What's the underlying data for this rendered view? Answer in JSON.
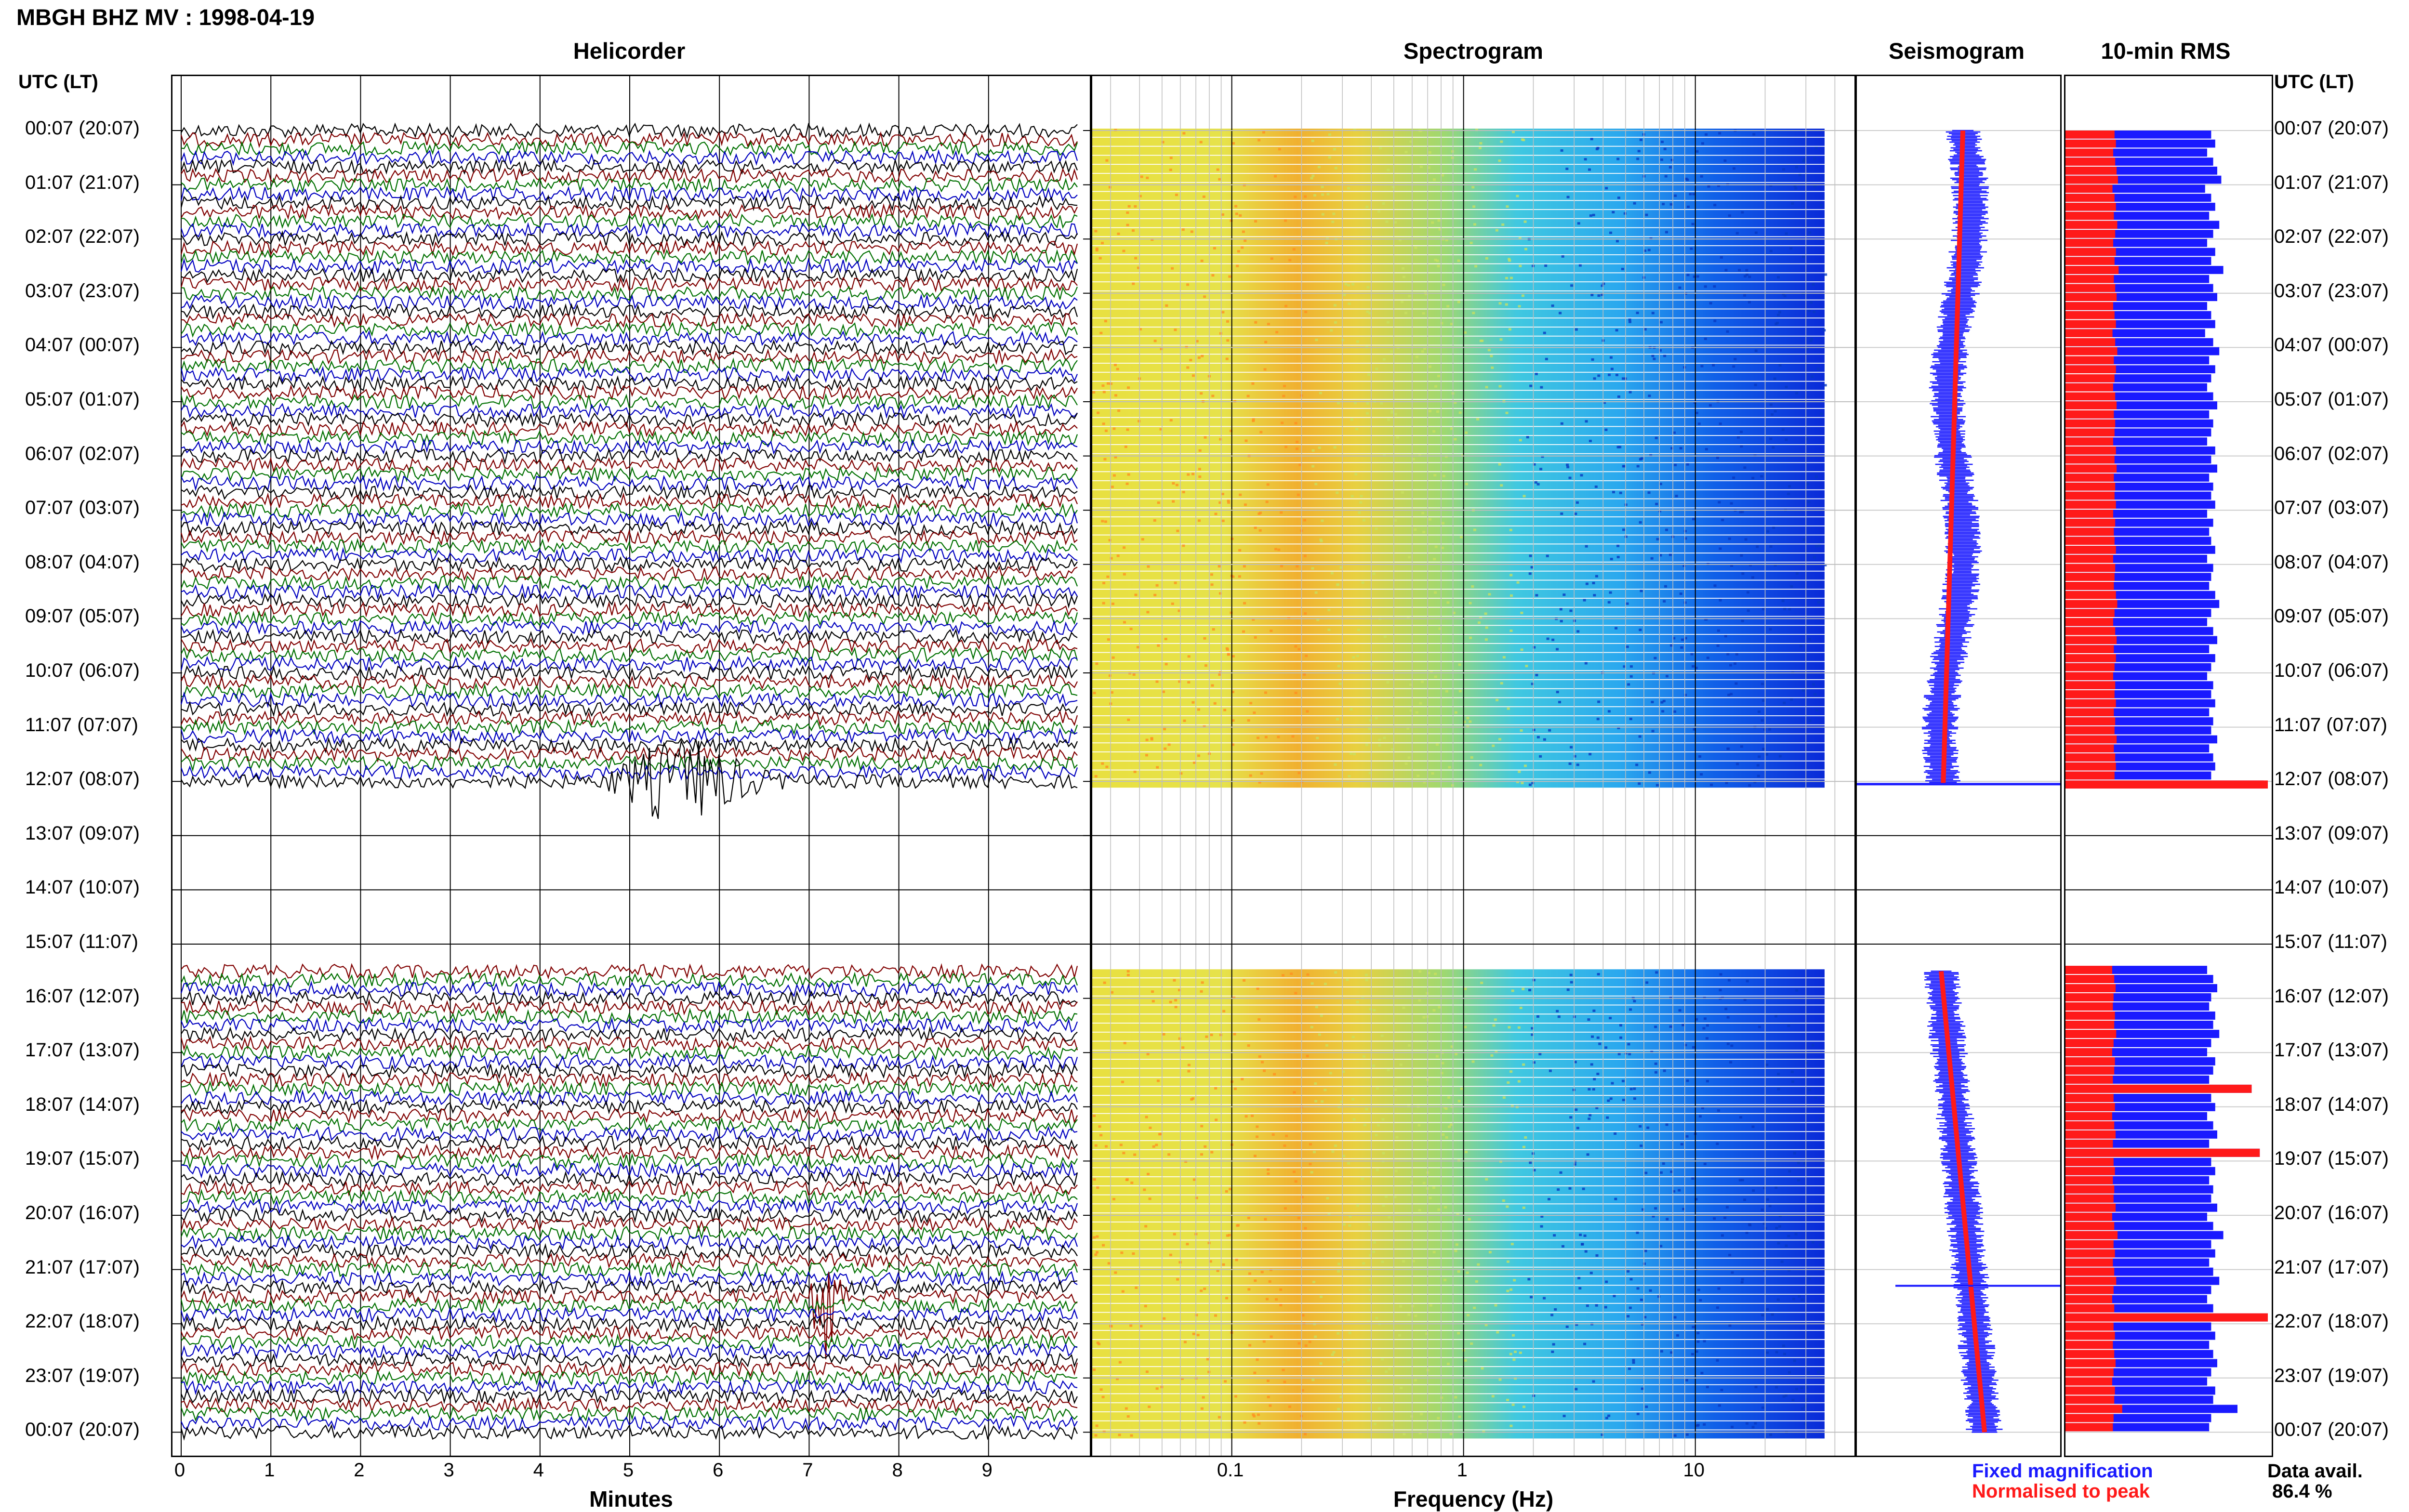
{
  "header": {
    "title": "MBGH BHZ MV : 1998-04-19"
  },
  "panels": {
    "helicorder": "Helicorder",
    "spectrogram": "Spectrogram",
    "seismogram": "Seismogram",
    "rms": "10-min RMS"
  },
  "axes": {
    "left_label": "UTC (LT)",
    "right_label": "UTC (LT)",
    "helicorder_xlabel": "Minutes",
    "spectrogram_xlabel": "Frequency (Hz)"
  },
  "legend": {
    "fixed": "Fixed magnification",
    "normalised": "Normalised to peak",
    "fixed_color": "#1a1aff",
    "normalised_color": "#ff1a1a"
  },
  "data_avail": {
    "label": "Data avail.",
    "value": "86.4 %"
  },
  "chart_data": [
    {
      "type": "line",
      "title": "Helicorder",
      "xlabel": "Minutes",
      "x_ticks": [
        "0",
        "1",
        "2",
        "3",
        "4",
        "5",
        "6",
        "7",
        "8",
        "9"
      ],
      "xlim": [
        0,
        10
      ],
      "y_tick_labels": [
        "00:07 (20:07)",
        "01:07 (21:07)",
        "02:07 (22:07)",
        "03:07 (23:07)",
        "04:07 (00:07)",
        "05:07 (01:07)",
        "06:07 (02:07)",
        "07:07 (03:07)",
        "08:07 (04:07)",
        "09:07 (05:07)",
        "10:07 (06:07)",
        "11:07 (07:07)",
        "12:07 (08:07)",
        "13:07 (09:07)",
        "14:07 (10:07)",
        "15:07 (11:07)",
        "16:07 (12:07)",
        "17:07 (13:07)",
        "18:07 (14:07)",
        "19:07 (15:07)",
        "20:07 (16:07)",
        "21:07 (17:07)",
        "22:07 (18:07)",
        "23:07 (19:07)",
        "00:07 (20:07)"
      ],
      "trace_colors": [
        "#000000",
        "#800000",
        "#007000",
        "#0000c0"
      ],
      "data_gap_hours": [
        12.1,
        15.4
      ]
    },
    {
      "type": "heatmap",
      "title": "Spectrogram",
      "xlabel": "Frequency (Hz)",
      "x_scale": "log",
      "x_ticks": [
        "0.1",
        "1",
        "10"
      ],
      "xlim": [
        0.025,
        50
      ]
    },
    {
      "type": "bar",
      "title": "10-min RMS",
      "series": [
        {
          "name": "Fixed magnification",
          "color": "#1a1aff",
          "values_first_block": [
            0.72,
            0.74,
            0.7,
            0.73,
            0.75,
            0.77,
            0.69,
            0.72,
            0.74,
            0.71,
            0.76,
            0.73,
            0.7,
            0.74,
            0.72,
            0.78,
            0.71,
            0.73,
            0.75,
            0.7,
            0.72,
            0.74,
            0.69,
            0.73,
            0.76,
            0.71,
            0.74,
            0.72,
            0.7,
            0.73,
            0.75,
            0.71,
            0.73,
            0.72,
            0.7,
            0.74,
            0.72,
            0.75,
            0.71,
            0.73,
            0.72,
            0.74,
            0.7,
            0.73,
            0.71,
            0.72,
            0.74,
            0.7,
            0.73,
            0.72,
            0.71,
            0.74,
            0.76,
            0.72,
            0.7,
            0.73,
            0.75,
            0.71,
            0.74,
            0.72,
            0.7,
            0.73,
            0.72,
            0.74,
            0.71,
            0.73,
            0.72,
            0.75,
            0.71,
            0.73,
            0.74,
            0.72,
            0.98
          ],
          "values_second_block": [
            0.7,
            0.73,
            0.75,
            0.72,
            0.71,
            0.74,
            0.73,
            0.76,
            0.72,
            0.7,
            0.74,
            0.73,
            0.71,
            0.92,
            0.72,
            0.74,
            0.7,
            0.73,
            0.75,
            0.71,
            0.96,
            0.72,
            0.74,
            0.71,
            0.73,
            0.72,
            0.75,
            0.7,
            0.73,
            0.78,
            0.72,
            0.74,
            0.71,
            0.73,
            0.76,
            0.72,
            0.7,
            0.73,
            1.0,
            0.72,
            0.74,
            0.71,
            0.73,
            0.75,
            0.72,
            0.7,
            0.74,
            0.73,
            0.85,
            0.72,
            0.71
          ]
        },
        {
          "name": "Normalised to peak",
          "color": "#ff1a1a"
        }
      ]
    }
  ]
}
